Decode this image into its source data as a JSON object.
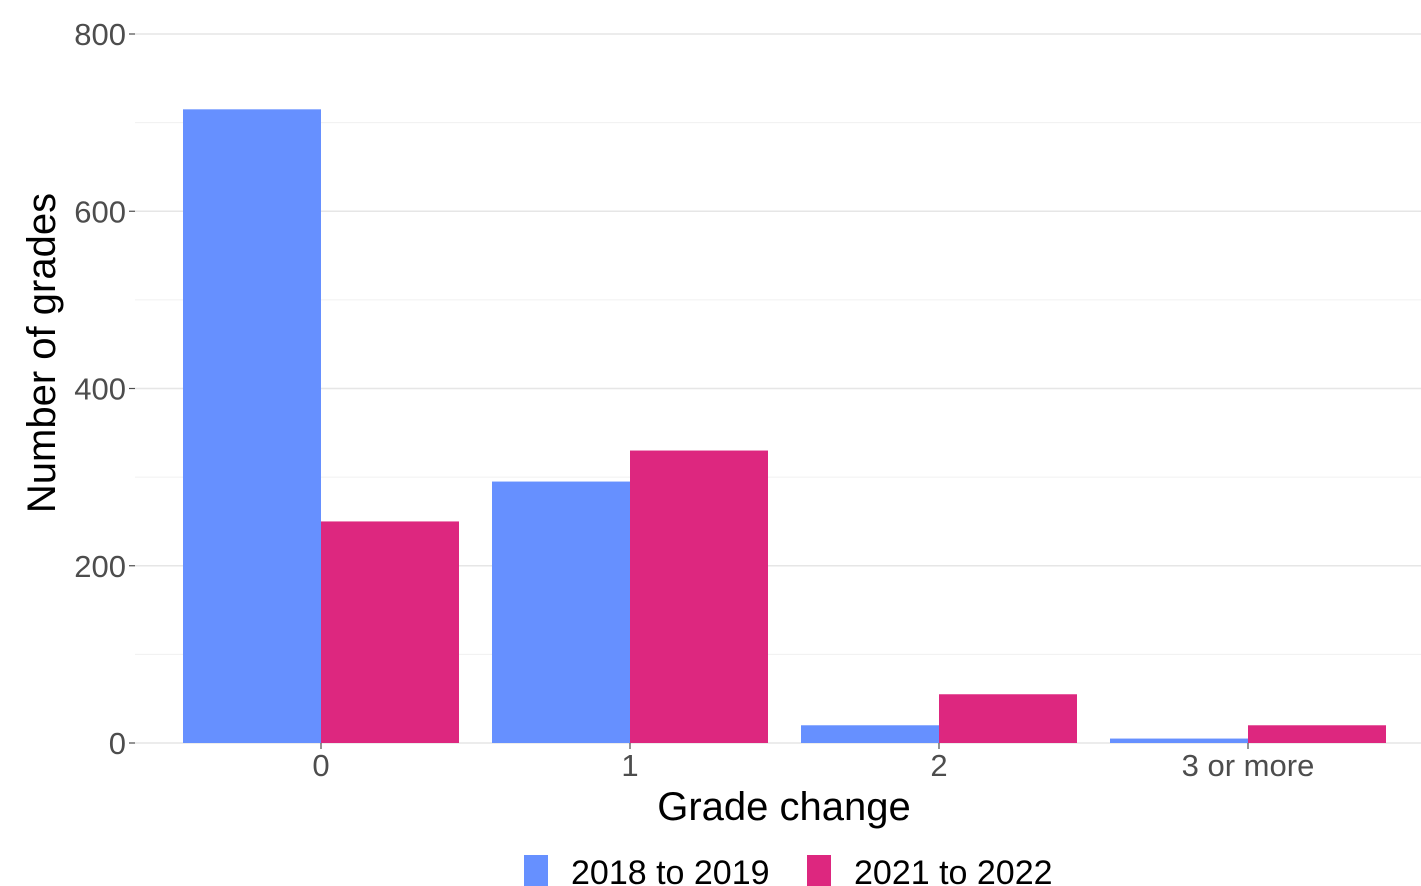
{
  "chart_data": {
    "type": "bar",
    "title": "",
    "xlabel": "Grade change",
    "ylabel": "Number of grades",
    "categories": [
      "0",
      "1",
      "2",
      "3 or more"
    ],
    "series": [
      {
        "name": "2018 to 2019",
        "color": "#6690FF",
        "values": [
          715,
          295,
          20,
          5
        ]
      },
      {
        "name": "2021 to 2022",
        "color": "#DD277F",
        "values": [
          250,
          330,
          55,
          20
        ]
      }
    ],
    "ylim": [
      0,
      800
    ],
    "yticks": [
      0,
      200,
      400,
      600,
      800
    ],
    "yticks_labels": [
      "0",
      "200",
      "400",
      "600",
      "800"
    ],
    "grid": true,
    "legend_position": "bottom"
  }
}
